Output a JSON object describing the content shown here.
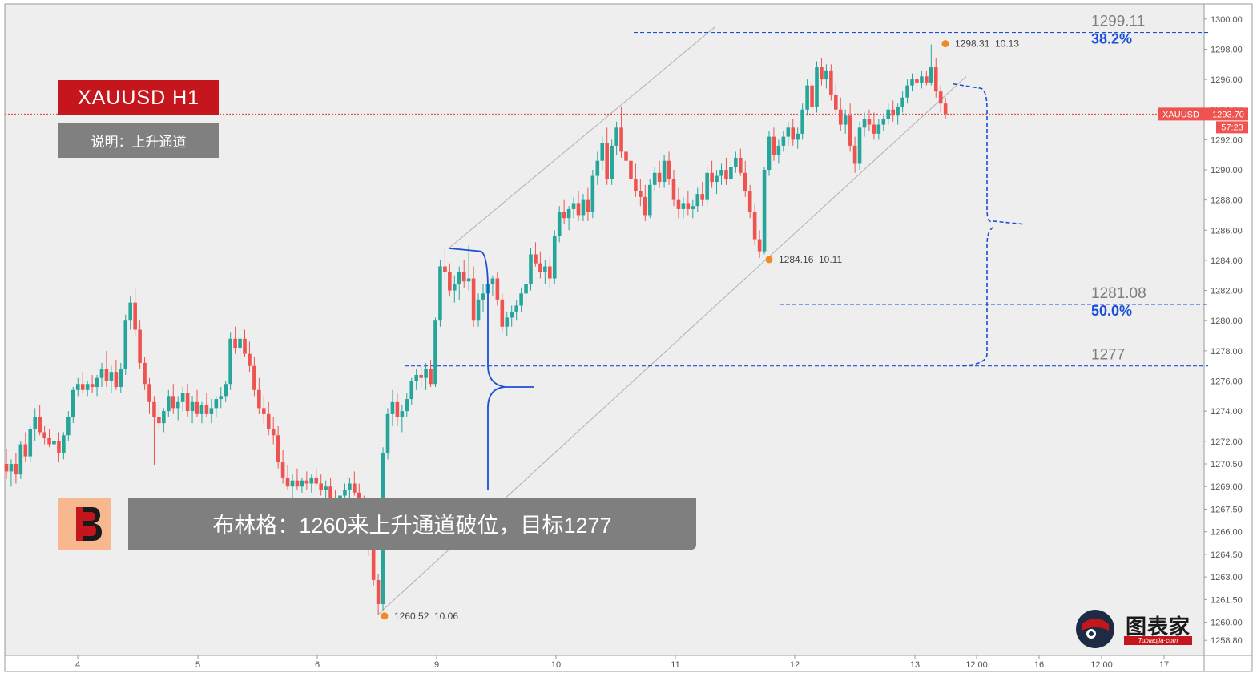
{
  "header": {
    "symbol_label": "XAUUSD  H1",
    "note_label": "说明：上升通道"
  },
  "banner": {
    "text": "布林格：1260来上升通道破位，目标1277"
  },
  "watermark": {
    "name": "图表家",
    "site": "Tubiaojia·com",
    "logo_icon": "robot-head-icon"
  },
  "colors": {
    "up": "#26a69a",
    "down": "#ef5350",
    "fib_line": "#1c4fd8",
    "price_line": "#e53935",
    "channel": "#b0b0b0",
    "pivot": "#f08a24"
  },
  "chart_data": {
    "type": "candlestick",
    "symbol": "XAUUSD",
    "timeframe": "H1",
    "ylim": [
      1257.8,
      1301.0
    ],
    "y_ticks": [
      "1300.00",
      "1298.00",
      "1296.00",
      "1294.00",
      "1292.00",
      "1290.00",
      "1288.00",
      "1286.00",
      "1284.00",
      "1282.00",
      "1280.00",
      "1278.00",
      "1276.00",
      "1274.00",
      "1272.00",
      "1270.50",
      "1269.00",
      "1267.50",
      "1266.00",
      "1264.50",
      "1263.00",
      "1261.50",
      "1260.00",
      "1258.80"
    ],
    "x_ticks": [
      "4",
      "5",
      "6",
      "9",
      "10",
      "11",
      "12",
      "13",
      "12:00",
      "16",
      "12:00",
      "17"
    ],
    "last_price": {
      "symbol": "XAUUSD",
      "value": 1293.7,
      "value_label": "1293.70",
      "countdown": "57:23"
    },
    "pivots": [
      {
        "price": 1260.52,
        "price_label": "1260.52",
        "ratio": "10.06"
      },
      {
        "price": 1284.16,
        "price_label": "1284.16",
        "ratio": "10.11"
      },
      {
        "price": 1298.31,
        "price_label": "1298.31",
        "ratio": "10.13"
      }
    ],
    "fib_levels": [
      {
        "price": 1299.11,
        "price_label": "1299.11",
        "pct": "38.2%"
      },
      {
        "price": 1281.08,
        "price_label": "1281.08",
        "pct": "50.0%"
      },
      {
        "price": 1277.0,
        "price_label": "1277",
        "pct": ""
      }
    ],
    "channel": {
      "lower_from": 1260.52,
      "lower_to": 1296.2,
      "upper_from": 1284.8,
      "upper_to": 1299.5
    },
    "projection_target": 1286.4,
    "candles": [
      [
        1270.5,
        1271.5,
        1269.5,
        1270.0
      ],
      [
        1270.0,
        1270.8,
        1269.0,
        1270.5
      ],
      [
        1270.5,
        1271.2,
        1269.2,
        1269.8
      ],
      [
        1269.8,
        1272.0,
        1269.5,
        1271.8
      ],
      [
        1271.8,
        1272.6,
        1270.6,
        1271.0
      ],
      [
        1271.0,
        1273.0,
        1270.6,
        1272.8
      ],
      [
        1272.8,
        1274.2,
        1272.0,
        1273.6
      ],
      [
        1273.6,
        1274.4,
        1272.4,
        1272.6
      ],
      [
        1272.6,
        1273.0,
        1271.8,
        1272.2
      ],
      [
        1272.2,
        1272.8,
        1271.6,
        1271.8
      ],
      [
        1271.8,
        1272.4,
        1271.0,
        1272.0
      ],
      [
        1272.0,
        1272.6,
        1270.6,
        1271.2
      ],
      [
        1271.2,
        1272.6,
        1270.8,
        1272.4
      ],
      [
        1272.4,
        1274.0,
        1272.0,
        1273.6
      ],
      [
        1273.6,
        1275.6,
        1273.2,
        1275.4
      ],
      [
        1275.4,
        1276.2,
        1275.0,
        1275.8
      ],
      [
        1275.8,
        1276.6,
        1275.2,
        1275.4
      ],
      [
        1275.4,
        1276.0,
        1275.0,
        1275.8
      ],
      [
        1275.8,
        1276.4,
        1275.2,
        1275.6
      ],
      [
        1275.6,
        1276.4,
        1275.0,
        1276.2
      ],
      [
        1276.2,
        1277.2,
        1275.6,
        1276.8
      ],
      [
        1276.8,
        1278.0,
        1275.6,
        1276.0
      ],
      [
        1276.0,
        1277.0,
        1275.2,
        1276.6
      ],
      [
        1276.6,
        1277.4,
        1275.4,
        1275.6
      ],
      [
        1275.6,
        1277.2,
        1275.2,
        1276.8
      ],
      [
        1276.8,
        1280.4,
        1276.4,
        1280.0
      ],
      [
        1280.0,
        1281.6,
        1279.4,
        1281.2
      ],
      [
        1281.2,
        1282.2,
        1279.0,
        1279.4
      ],
      [
        1279.4,
        1280.0,
        1276.8,
        1277.2
      ],
      [
        1277.2,
        1277.6,
        1275.4,
        1275.8
      ],
      [
        1275.8,
        1276.2,
        1273.8,
        1274.6
      ],
      [
        1274.6,
        1275.0,
        1270.4,
        1273.6
      ],
      [
        1273.6,
        1274.6,
        1272.8,
        1273.2
      ],
      [
        1273.2,
        1274.2,
        1272.6,
        1274.0
      ],
      [
        1274.0,
        1275.4,
        1273.6,
        1275.0
      ],
      [
        1275.0,
        1275.8,
        1273.8,
        1274.2
      ],
      [
        1274.2,
        1275.0,
        1273.4,
        1274.6
      ],
      [
        1274.6,
        1275.6,
        1274.0,
        1275.2
      ],
      [
        1275.2,
        1275.8,
        1273.6,
        1274.0
      ],
      [
        1274.0,
        1275.0,
        1273.2,
        1274.6
      ],
      [
        1274.6,
        1275.4,
        1273.6,
        1273.8
      ],
      [
        1273.8,
        1274.6,
        1273.2,
        1274.4
      ],
      [
        1274.4,
        1275.2,
        1273.6,
        1273.8
      ],
      [
        1273.8,
        1274.8,
        1273.2,
        1274.2
      ],
      [
        1274.2,
        1275.0,
        1273.6,
        1274.8
      ],
      [
        1274.8,
        1275.6,
        1274.2,
        1275.0
      ],
      [
        1275.0,
        1276.0,
        1274.6,
        1275.8
      ],
      [
        1275.8,
        1279.2,
        1275.4,
        1278.8
      ],
      [
        1278.8,
        1279.6,
        1277.8,
        1278.2
      ],
      [
        1278.2,
        1279.0,
        1277.4,
        1278.8
      ],
      [
        1278.8,
        1279.4,
        1277.6,
        1277.8
      ],
      [
        1277.8,
        1278.6,
        1276.6,
        1277.0
      ],
      [
        1277.0,
        1277.6,
        1275.0,
        1275.4
      ],
      [
        1275.4,
        1276.2,
        1273.8,
        1274.2
      ],
      [
        1274.2,
        1275.0,
        1273.2,
        1273.8
      ],
      [
        1273.8,
        1274.6,
        1272.4,
        1272.8
      ],
      [
        1272.8,
        1273.6,
        1271.8,
        1272.4
      ],
      [
        1272.4,
        1273.0,
        1270.2,
        1270.6
      ],
      [
        1270.6,
        1271.4,
        1269.2,
        1269.6
      ],
      [
        1269.6,
        1270.4,
        1268.8,
        1269.0
      ],
      [
        1269.0,
        1269.8,
        1268.2,
        1269.4
      ],
      [
        1269.4,
        1270.2,
        1268.8,
        1269.0
      ],
      [
        1269.0,
        1269.6,
        1268.6,
        1269.4
      ],
      [
        1269.4,
        1270.0,
        1268.8,
        1269.2
      ],
      [
        1269.2,
        1269.8,
        1268.6,
        1269.6
      ],
      [
        1269.6,
        1270.2,
        1269.0,
        1269.2
      ],
      [
        1269.2,
        1269.8,
        1268.4,
        1268.8
      ],
      [
        1268.8,
        1269.4,
        1268.0,
        1269.0
      ],
      [
        1269.0,
        1269.6,
        1267.8,
        1268.2
      ],
      [
        1268.2,
        1268.8,
        1267.4,
        1268.0
      ],
      [
        1268.0,
        1268.6,
        1267.2,
        1268.4
      ],
      [
        1268.4,
        1269.2,
        1267.8,
        1268.8
      ],
      [
        1268.8,
        1269.6,
        1268.2,
        1269.2
      ],
      [
        1269.2,
        1270.0,
        1268.4,
        1268.6
      ],
      [
        1268.6,
        1269.2,
        1267.4,
        1267.8
      ],
      [
        1267.8,
        1268.4,
        1266.0,
        1266.6
      ],
      [
        1266.6,
        1267.2,
        1264.4,
        1264.8
      ],
      [
        1264.8,
        1265.4,
        1262.4,
        1262.8
      ],
      [
        1262.8,
        1263.2,
        1260.52,
        1261.2
      ],
      [
        1261.2,
        1271.6,
        1260.8,
        1271.2
      ],
      [
        1271.2,
        1274.2,
        1270.8,
        1273.8
      ],
      [
        1273.8,
        1275.4,
        1273.0,
        1274.6
      ],
      [
        1274.6,
        1275.2,
        1273.0,
        1273.6
      ],
      [
        1273.6,
        1274.4,
        1272.6,
        1274.0
      ],
      [
        1274.0,
        1275.2,
        1273.6,
        1274.8
      ],
      [
        1274.8,
        1276.2,
        1274.4,
        1276.0
      ],
      [
        1276.0,
        1276.8,
        1275.4,
        1276.4
      ],
      [
        1276.4,
        1277.0,
        1275.6,
        1276.2
      ],
      [
        1276.2,
        1277.2,
        1275.4,
        1276.8
      ],
      [
        1276.8,
        1277.4,
        1275.6,
        1275.8
      ],
      [
        1275.8,
        1280.2,
        1275.6,
        1280.0
      ],
      [
        1280.0,
        1284.0,
        1279.6,
        1283.6
      ],
      [
        1283.6,
        1284.8,
        1282.6,
        1283.2
      ],
      [
        1283.2,
        1283.8,
        1281.6,
        1282.0
      ],
      [
        1282.0,
        1283.0,
        1281.2,
        1282.4
      ],
      [
        1282.4,
        1283.6,
        1281.4,
        1283.2
      ],
      [
        1283.2,
        1284.0,
        1282.2,
        1282.6
      ],
      [
        1282.6,
        1285.0,
        1282.0,
        1282.8
      ],
      [
        1282.8,
        1283.6,
        1279.6,
        1280.0
      ],
      [
        1280.0,
        1281.8,
        1279.6,
        1281.4
      ],
      [
        1281.4,
        1282.4,
        1280.6,
        1281.8
      ],
      [
        1281.8,
        1282.6,
        1281.2,
        1282.4
      ],
      [
        1282.4,
        1283.0,
        1281.6,
        1282.8
      ],
      [
        1282.8,
        1283.2,
        1281.0,
        1281.4
      ],
      [
        1281.4,
        1281.8,
        1279.2,
        1279.6
      ],
      [
        1279.6,
        1280.6,
        1279.0,
        1280.2
      ],
      [
        1280.2,
        1281.0,
        1279.6,
        1280.6
      ],
      [
        1280.6,
        1281.4,
        1280.0,
        1281.0
      ],
      [
        1281.0,
        1282.2,
        1280.6,
        1281.8
      ],
      [
        1281.8,
        1282.8,
        1281.2,
        1282.4
      ],
      [
        1282.4,
        1284.8,
        1282.0,
        1284.4
      ],
      [
        1284.4,
        1285.2,
        1283.6,
        1283.8
      ],
      [
        1283.8,
        1284.6,
        1282.8,
        1283.2
      ],
      [
        1283.2,
        1284.0,
        1282.4,
        1283.6
      ],
      [
        1283.6,
        1284.2,
        1282.2,
        1282.8
      ],
      [
        1282.8,
        1286.0,
        1282.4,
        1285.6
      ],
      [
        1285.6,
        1287.6,
        1285.2,
        1287.2
      ],
      [
        1287.2,
        1288.0,
        1286.4,
        1286.8
      ],
      [
        1286.8,
        1287.6,
        1286.0,
        1287.4
      ],
      [
        1287.4,
        1288.2,
        1286.8,
        1287.8
      ],
      [
        1287.8,
        1288.6,
        1286.6,
        1287.0
      ],
      [
        1287.0,
        1288.4,
        1286.6,
        1288.0
      ],
      [
        1288.0,
        1288.8,
        1286.6,
        1287.2
      ],
      [
        1287.2,
        1290.0,
        1286.8,
        1289.6
      ],
      [
        1289.6,
        1291.2,
        1289.0,
        1290.6
      ],
      [
        1290.6,
        1292.2,
        1290.0,
        1291.8
      ],
      [
        1291.8,
        1292.8,
        1289.0,
        1289.4
      ],
      [
        1289.4,
        1292.0,
        1289.0,
        1291.6
      ],
      [
        1291.6,
        1293.2,
        1291.0,
        1292.8
      ],
      [
        1292.8,
        1294.2,
        1290.8,
        1291.2
      ],
      [
        1291.2,
        1292.0,
        1290.2,
        1290.6
      ],
      [
        1290.6,
        1291.4,
        1289.0,
        1289.4
      ],
      [
        1289.4,
        1290.4,
        1288.2,
        1288.6
      ],
      [
        1288.6,
        1289.4,
        1287.6,
        1288.2
      ],
      [
        1288.2,
        1289.0,
        1286.6,
        1287.0
      ],
      [
        1287.0,
        1289.4,
        1286.8,
        1289.0
      ],
      [
        1289.0,
        1290.2,
        1288.6,
        1289.8
      ],
      [
        1289.8,
        1290.6,
        1288.8,
        1289.2
      ],
      [
        1289.2,
        1291.0,
        1288.8,
        1290.6
      ],
      [
        1290.6,
        1291.2,
        1289.0,
        1289.4
      ],
      [
        1289.4,
        1290.0,
        1287.6,
        1288.0
      ],
      [
        1288.0,
        1288.8,
        1286.8,
        1287.4
      ],
      [
        1287.4,
        1288.2,
        1286.8,
        1287.8
      ],
      [
        1287.8,
        1288.6,
        1287.0,
        1287.4
      ],
      [
        1287.4,
        1288.0,
        1286.8,
        1287.6
      ],
      [
        1287.6,
        1288.8,
        1287.2,
        1288.4
      ],
      [
        1288.4,
        1289.2,
        1287.6,
        1288.0
      ],
      [
        1288.0,
        1290.2,
        1287.6,
        1289.8
      ],
      [
        1289.8,
        1290.6,
        1288.8,
        1289.2
      ],
      [
        1289.2,
        1290.0,
        1288.4,
        1289.6
      ],
      [
        1289.6,
        1290.4,
        1289.0,
        1290.0
      ],
      [
        1290.0,
        1290.8,
        1289.0,
        1289.4
      ],
      [
        1289.4,
        1290.6,
        1289.0,
        1290.2
      ],
      [
        1290.2,
        1291.2,
        1289.8,
        1290.8
      ],
      [
        1290.8,
        1291.4,
        1289.6,
        1289.8
      ],
      [
        1289.8,
        1290.6,
        1288.2,
        1288.6
      ],
      [
        1288.6,
        1289.0,
        1286.8,
        1287.2
      ],
      [
        1287.2,
        1287.8,
        1285.0,
        1285.4
      ],
      [
        1285.4,
        1286.0,
        1284.16,
        1284.6
      ],
      [
        1284.6,
        1290.2,
        1284.4,
        1290.0
      ],
      [
        1290.0,
        1292.6,
        1289.6,
        1292.2
      ],
      [
        1292.2,
        1292.8,
        1290.6,
        1291.0
      ],
      [
        1291.0,
        1292.0,
        1290.4,
        1291.6
      ],
      [
        1291.6,
        1292.6,
        1291.2,
        1292.2
      ],
      [
        1292.2,
        1293.2,
        1291.6,
        1292.8
      ],
      [
        1292.8,
        1293.4,
        1291.6,
        1292.0
      ],
      [
        1292.0,
        1292.8,
        1291.4,
        1292.4
      ],
      [
        1292.4,
        1294.4,
        1292.0,
        1294.0
      ],
      [
        1294.0,
        1296.0,
        1293.6,
        1295.6
      ],
      [
        1295.6,
        1296.6,
        1293.8,
        1294.2
      ],
      [
        1294.2,
        1297.2,
        1293.8,
        1296.8
      ],
      [
        1296.8,
        1297.4,
        1295.6,
        1296.0
      ],
      [
        1296.0,
        1297.0,
        1295.4,
        1296.6
      ],
      [
        1296.6,
        1297.0,
        1294.6,
        1295.0
      ],
      [
        1295.0,
        1295.8,
        1293.6,
        1294.0
      ],
      [
        1294.0,
        1294.8,
        1292.6,
        1293.0
      ],
      [
        1293.0,
        1294.0,
        1292.4,
        1293.6
      ],
      [
        1293.6,
        1294.4,
        1291.2,
        1291.6
      ],
      [
        1291.6,
        1292.2,
        1289.8,
        1290.4
      ],
      [
        1290.4,
        1293.2,
        1290.0,
        1292.8
      ],
      [
        1292.8,
        1293.8,
        1292.2,
        1293.4
      ],
      [
        1293.4,
        1294.0,
        1292.6,
        1293.0
      ],
      [
        1293.0,
        1293.8,
        1292.0,
        1292.4
      ],
      [
        1292.4,
        1293.4,
        1292.0,
        1293.0
      ],
      [
        1293.0,
        1293.6,
        1292.6,
        1293.4
      ],
      [
        1293.4,
        1294.4,
        1293.0,
        1294.0
      ],
      [
        1294.0,
        1294.6,
        1293.2,
        1293.6
      ],
      [
        1293.6,
        1294.4,
        1293.0,
        1294.2
      ],
      [
        1294.2,
        1295.2,
        1293.8,
        1294.8
      ],
      [
        1294.8,
        1296.0,
        1294.4,
        1295.6
      ],
      [
        1295.6,
        1296.4,
        1295.2,
        1296.0
      ],
      [
        1296.0,
        1296.6,
        1295.4,
        1295.8
      ],
      [
        1295.8,
        1296.6,
        1295.4,
        1296.2
      ],
      [
        1296.2,
        1296.6,
        1295.6,
        1295.8
      ],
      [
        1295.8,
        1298.31,
        1295.6,
        1296.8
      ],
      [
        1296.8,
        1297.4,
        1294.8,
        1295.2
      ],
      [
        1295.2,
        1295.6,
        1293.8,
        1294.4
      ],
      [
        1294.4,
        1294.8,
        1293.4,
        1293.7
      ]
    ]
  }
}
